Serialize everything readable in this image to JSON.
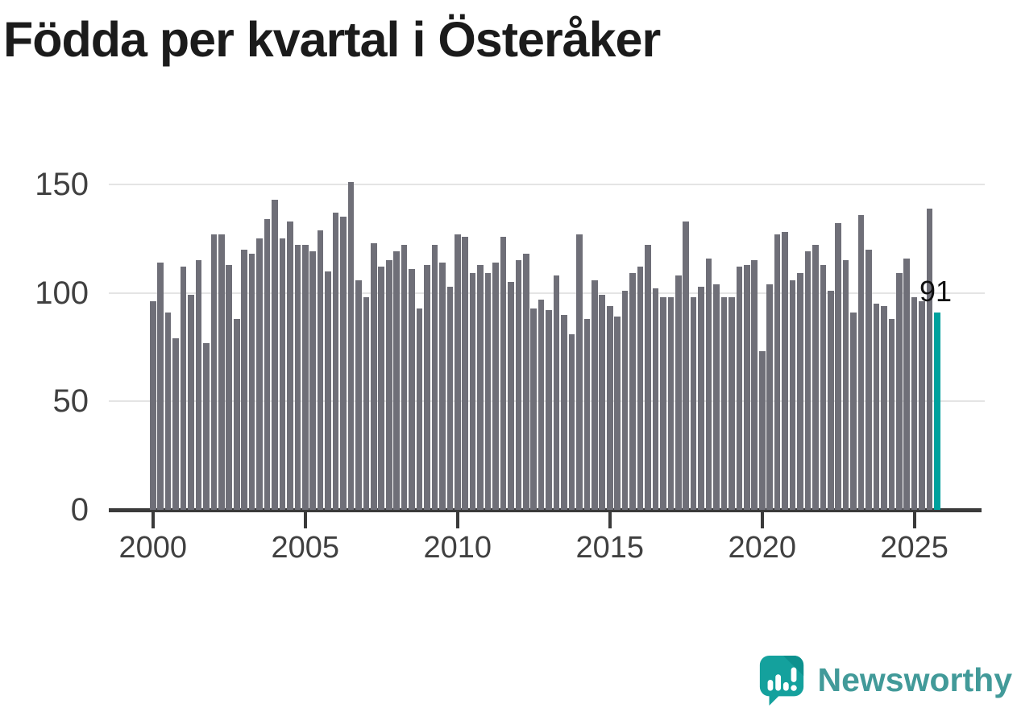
{
  "title": "Födda per kvartal i Österåker",
  "annotation": {
    "label": "91"
  },
  "logo": {
    "brand": "Newsworthy"
  },
  "colors": {
    "bar": "#6f6f78",
    "highlight": "#00a19d",
    "axis": "#3a3a3a",
    "gridline": "#e4e4e4",
    "tick_text": "#404040",
    "title_text": "#1b1b1b",
    "annotation_text": "#111111",
    "logo_teal": "#429a99"
  },
  "y_axis": {
    "tick_labels": [
      "0",
      "50",
      "100",
      "150"
    ],
    "tick_values": [
      0,
      50,
      100,
      150
    ]
  },
  "x_axis": {
    "tick_labels": [
      "2000",
      "2005",
      "2010",
      "2015",
      "2020",
      "2025"
    ],
    "tick_quarter_indices": [
      0,
      20,
      40,
      60,
      80,
      100
    ]
  },
  "chart_data": {
    "type": "bar",
    "title": "Födda per kvartal i Österåker",
    "xlabel": "",
    "ylabel": "",
    "ylim": [
      0,
      150
    ],
    "yticks": [
      0,
      50,
      100,
      150
    ],
    "xticks": [
      "2000",
      "2005",
      "2010",
      "2015",
      "2020",
      "2025"
    ],
    "grid": true,
    "legend": false,
    "highlight_index": 103,
    "highlight_label": "91",
    "categories": [
      "2000 Q1",
      "2000 Q2",
      "2000 Q3",
      "2000 Q4",
      "2001 Q1",
      "2001 Q2",
      "2001 Q3",
      "2001 Q4",
      "2002 Q1",
      "2002 Q2",
      "2002 Q3",
      "2002 Q4",
      "2003 Q1",
      "2003 Q2",
      "2003 Q3",
      "2003 Q4",
      "2004 Q1",
      "2004 Q2",
      "2004 Q3",
      "2004 Q4",
      "2005 Q1",
      "2005 Q2",
      "2005 Q3",
      "2005 Q4",
      "2006 Q1",
      "2006 Q2",
      "2006 Q3",
      "2006 Q4",
      "2007 Q1",
      "2007 Q2",
      "2007 Q3",
      "2007 Q4",
      "2008 Q1",
      "2008 Q2",
      "2008 Q3",
      "2008 Q4",
      "2009 Q1",
      "2009 Q2",
      "2009 Q3",
      "2009 Q4",
      "2010 Q1",
      "2010 Q2",
      "2010 Q3",
      "2010 Q4",
      "2011 Q1",
      "2011 Q2",
      "2011 Q3",
      "2011 Q4",
      "2012 Q1",
      "2012 Q2",
      "2012 Q3",
      "2012 Q4",
      "2013 Q1",
      "2013 Q2",
      "2013 Q3",
      "2013 Q4",
      "2014 Q1",
      "2014 Q2",
      "2014 Q3",
      "2014 Q4",
      "2015 Q1",
      "2015 Q2",
      "2015 Q3",
      "2015 Q4",
      "2016 Q1",
      "2016 Q2",
      "2016 Q3",
      "2016 Q4",
      "2017 Q1",
      "2017 Q2",
      "2017 Q3",
      "2017 Q4",
      "2018 Q1",
      "2018 Q2",
      "2018 Q3",
      "2018 Q4",
      "2019 Q1",
      "2019 Q2",
      "2019 Q3",
      "2019 Q4",
      "2020 Q1",
      "2020 Q2",
      "2020 Q3",
      "2020 Q4",
      "2021 Q1",
      "2021 Q2",
      "2021 Q3",
      "2021 Q4",
      "2022 Q1",
      "2022 Q2",
      "2022 Q3",
      "2022 Q4",
      "2023 Q1",
      "2023 Q2",
      "2023 Q3",
      "2023 Q4",
      "2024 Q1",
      "2024 Q2",
      "2024 Q3",
      "2024 Q4",
      "2025 Q1",
      "2025 Q2",
      "2025 Q3",
      "2025 Q4"
    ],
    "values": [
      96,
      114,
      91,
      79,
      112,
      99,
      115,
      77,
      127,
      127,
      113,
      88,
      120,
      118,
      125,
      134,
      143,
      125,
      133,
      122,
      122,
      119,
      129,
      110,
      137,
      135,
      151,
      106,
      98,
      123,
      112,
      115,
      119,
      122,
      111,
      93,
      113,
      122,
      114,
      103,
      127,
      126,
      109,
      113,
      109,
      114,
      126,
      105,
      115,
      118,
      93,
      97,
      92,
      108,
      90,
      81,
      127,
      88,
      106,
      99,
      94,
      89,
      101,
      109,
      112,
      122,
      102,
      98,
      98,
      108,
      133,
      98,
      103,
      116,
      104,
      98,
      98,
      112,
      113,
      115,
      73,
      104,
      127,
      128,
      106,
      109,
      119,
      122,
      113,
      101,
      132,
      115,
      91,
      136,
      120,
      95,
      94,
      88,
      109,
      116,
      98,
      96,
      139,
      91
    ]
  }
}
